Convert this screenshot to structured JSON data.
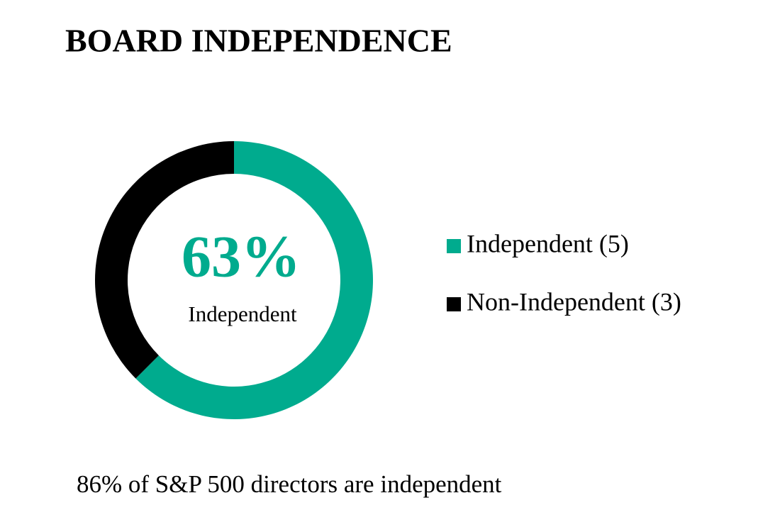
{
  "chart_data": {
    "type": "donut",
    "title": "BOARD INDEPENDENCE",
    "categories": [
      "Independent (5)",
      "Non-Independent (3)"
    ],
    "values": [
      5,
      3
    ],
    "colors": [
      "#00ab8e",
      "#000000"
    ],
    "center_label": "63%",
    "center_sublabel": "Independent",
    "note": "86% of S&P 500 directors are independent"
  }
}
